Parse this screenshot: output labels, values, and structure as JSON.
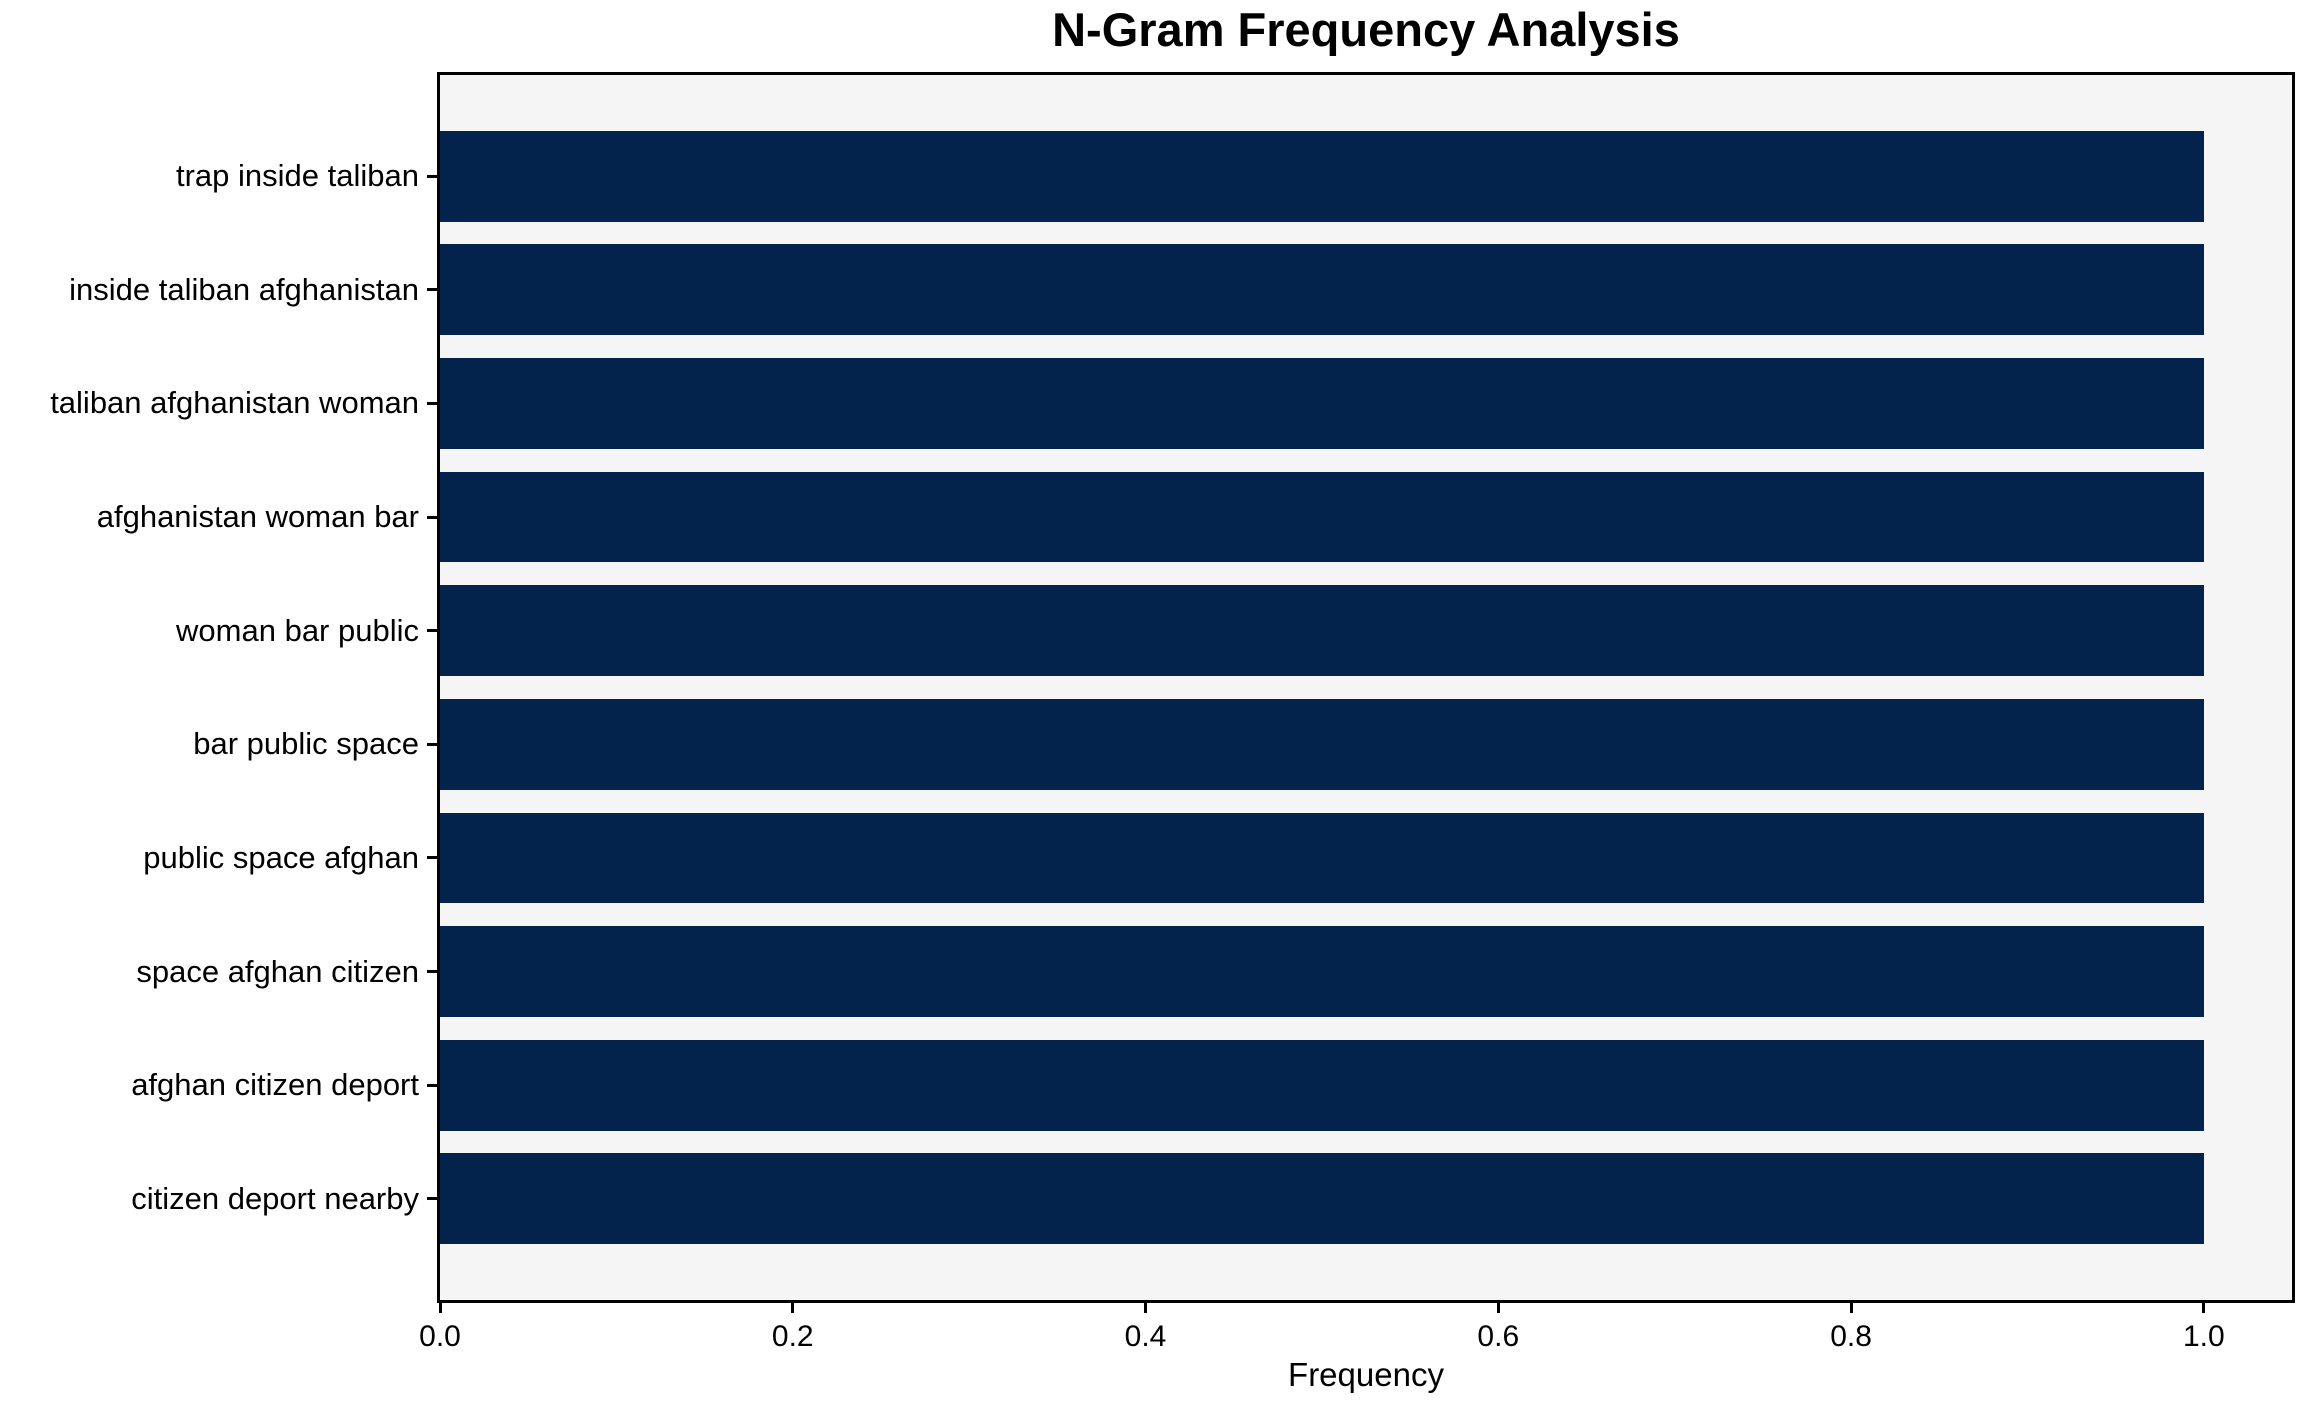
{
  "chart_data": {
    "type": "bar",
    "orientation": "horizontal",
    "title": "N-Gram Frequency Analysis",
    "xlabel": "Frequency",
    "ylabel": "",
    "categories": [
      "trap inside taliban",
      "inside taliban afghanistan",
      "taliban afghanistan woman",
      "afghanistan woman bar",
      "woman bar public",
      "bar public space",
      "public space afghan",
      "space afghan citizen",
      "afghan citizen deport",
      "citizen deport nearby"
    ],
    "values": [
      1.0,
      1.0,
      1.0,
      1.0,
      1.0,
      1.0,
      1.0,
      1.0,
      1.0,
      1.0
    ],
    "xlim": [
      0,
      1.05
    ],
    "ylim_units": [
      -0.89,
      9.89
    ],
    "bar_height_units": 0.8,
    "xticks": [
      0.0,
      0.2,
      0.4,
      0.6,
      0.8,
      1.0
    ],
    "xtick_labels": [
      "0.0",
      "0.2",
      "0.4",
      "0.6",
      "0.8",
      "1.0"
    ],
    "grid": false,
    "legend": null,
    "colors": {
      "bar": "#03224c",
      "plot_background": "#f5f5f5",
      "figure_background": "#ffffff",
      "spine": "#000000",
      "text": "#000000"
    }
  }
}
